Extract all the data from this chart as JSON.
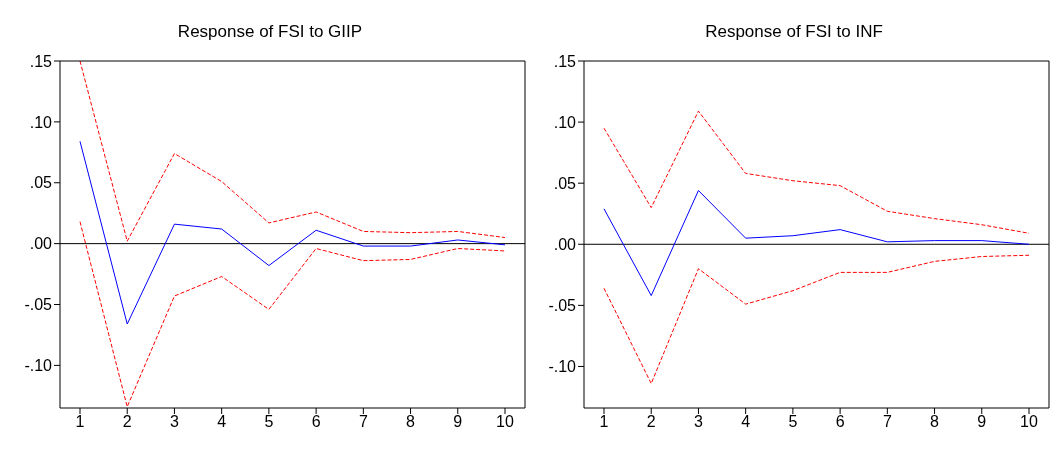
{
  "chart_data": [
    {
      "type": "line",
      "title": "Response of FSI to GIIP",
      "categories": [
        "1",
        "2",
        "3",
        "4",
        "5",
        "6",
        "7",
        "8",
        "9",
        "10"
      ],
      "series": [
        {
          "color": "#0000ff",
          "line_style": "solid",
          "values": [
            0.084,
            -0.066,
            0.016,
            0.012,
            -0.018,
            0.011,
            -0.002,
            -0.002,
            0.003,
            -0.001
          ]
        },
        {
          "color": "#ff0000",
          "line_style": "dashed",
          "values": [
            0.15,
            0.002,
            0.074,
            0.051,
            0.017,
            0.026,
            0.01,
            0.009,
            0.01,
            0.005
          ]
        },
        {
          "color": "#ff0000",
          "line_style": "dashed",
          "values": [
            0.018,
            -0.134,
            -0.043,
            -0.027,
            -0.054,
            -0.004,
            -0.014,
            -0.013,
            -0.004,
            -0.006
          ]
        }
      ],
      "ylim": [
        -0.135,
        0.15
      ],
      "yticks": [
        {
          "value": -0.1,
          "label": "-.10"
        },
        {
          "value": -0.05,
          "label": "-.05"
        },
        {
          "value": 0,
          "label": ".00"
        },
        {
          "value": 0.05,
          "label": ".05"
        },
        {
          "value": 0.1,
          "label": ".10"
        },
        {
          "value": 0.15,
          "label": ".15"
        }
      ],
      "ref_lines": [
        {
          "axis": "y",
          "value": 0,
          "color": "#000000"
        }
      ],
      "grid": false,
      "legend": false,
      "marker": "none"
    },
    {
      "type": "line",
      "title": "Response of FSI to INF",
      "categories": [
        "1",
        "2",
        "3",
        "4",
        "5",
        "6",
        "7",
        "8",
        "9",
        "10"
      ],
      "series": [
        {
          "color": "#0000ff",
          "line_style": "solid",
          "values": [
            0.029,
            -0.042,
            0.044,
            0.005,
            0.007,
            0.012,
            0.002,
            0.003,
            0.003,
            0.0
          ]
        },
        {
          "color": "#ff0000",
          "line_style": "dashed",
          "values": [
            0.095,
            0.03,
            0.109,
            0.058,
            0.052,
            0.048,
            0.027,
            0.021,
            0.016,
            0.009
          ]
        },
        {
          "color": "#ff0000",
          "line_style": "dashed",
          "values": [
            -0.036,
            -0.114,
            -0.02,
            -0.049,
            -0.038,
            -0.023,
            -0.023,
            -0.014,
            -0.01,
            -0.009
          ]
        }
      ],
      "ylim": [
        -0.134,
        0.15
      ],
      "yticks": [
        {
          "value": -0.1,
          "label": "-.10"
        },
        {
          "value": -0.05,
          "label": "-.05"
        },
        {
          "value": 0,
          "label": ".00"
        },
        {
          "value": 0.05,
          "label": ".05"
        },
        {
          "value": 0.1,
          "label": ".10"
        },
        {
          "value": 0.15,
          "label": ".15"
        }
      ],
      "ref_lines": [
        {
          "axis": "y",
          "value": 0,
          "color": "#000000"
        }
      ],
      "grid": false,
      "legend": false,
      "marker": "none"
    }
  ]
}
